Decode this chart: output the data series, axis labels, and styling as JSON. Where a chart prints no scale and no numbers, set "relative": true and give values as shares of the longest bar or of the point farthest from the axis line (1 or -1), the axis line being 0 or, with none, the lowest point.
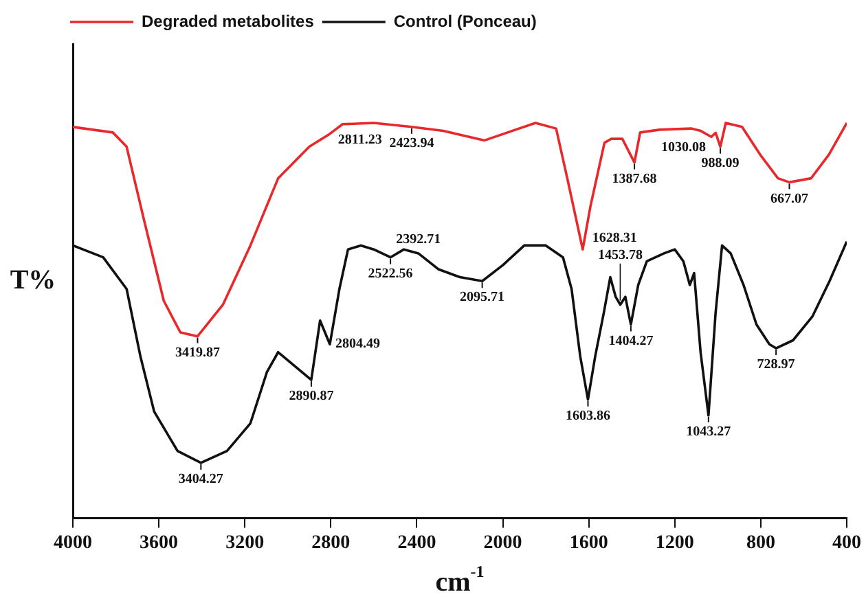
{
  "chart_data": {
    "type": "line",
    "relative": true,
    "xlabel": "cm$^{-1}$",
    "ylabel": "T%",
    "xlim": [
      4000,
      400
    ],
    "xticks": [
      4000,
      3600,
      3200,
      2800,
      2400,
      2000,
      1600,
      1200,
      800,
      400
    ],
    "grid": false,
    "legend": "top left",
    "marker": "none",
    "line_style": "solid",
    "series": [
      {
        "name": "Degraded metabolites",
        "color": "#e8282b",
        "x": [
          4000,
          3814,
          3750,
          3667,
          3577,
          3500,
          3419.87,
          3302,
          3174,
          3045,
          2900,
          2811.23,
          2745,
          2600,
          2423.94,
          2277,
          2085,
          1848,
          1752,
          1700,
          1628.31,
          1592,
          1527,
          1495,
          1444,
          1387.68,
          1361,
          1271,
          1124,
          1079,
          1030.08,
          1010,
          988.09,
          963,
          887,
          803,
          720,
          667.07,
          566,
          483,
          400
        ],
        "values": [
          0.99,
          0.976,
          0.94,
          0.75,
          0.55,
          0.47,
          0.46,
          0.54,
          0.69,
          0.86,
          0.94,
          0.97,
          0.997,
          1.0,
          0.99,
          0.98,
          0.956,
          1.0,
          0.986,
          0.86,
          0.68,
          0.79,
          0.95,
          0.96,
          0.96,
          0.9,
          0.976,
          0.983,
          0.986,
          0.98,
          0.965,
          0.975,
          0.94,
          1.0,
          0.99,
          0.92,
          0.86,
          0.85,
          0.86,
          0.92,
          1.0
        ]
      },
      {
        "name": "Control (Ponceau)",
        "color": "#111111",
        "x": [
          4000,
          3859,
          3750,
          3686,
          3622,
          3513,
          3404.27,
          3283,
          3174,
          3097,
          3045,
          2890.87,
          2850,
          2804.49,
          2760,
          2720,
          2660,
          2600,
          2522.56,
          2460,
          2392.71,
          2300,
          2200,
          2095.71,
          2000,
          1900,
          1800,
          1720,
          1680,
          1640,
          1603.86,
          1570,
          1530,
          1500,
          1475,
          1453.78,
          1430,
          1404.27,
          1370,
          1330,
          1250,
          1200,
          1160,
          1130,
          1110,
          1080,
          1043.27,
          1010,
          980,
          940,
          880,
          820,
          760,
          728.97,
          650,
          560,
          480,
          400
        ],
        "values": [
          0.69,
          0.66,
          0.58,
          0.41,
          0.27,
          0.17,
          0.14,
          0.17,
          0.24,
          0.37,
          0.42,
          0.35,
          0.5,
          0.44,
          0.58,
          0.68,
          0.69,
          0.68,
          0.66,
          0.68,
          0.67,
          0.63,
          0.61,
          0.6,
          0.64,
          0.69,
          0.69,
          0.66,
          0.58,
          0.41,
          0.3,
          0.41,
          0.52,
          0.61,
          0.56,
          0.54,
          0.56,
          0.49,
          0.59,
          0.65,
          0.67,
          0.68,
          0.65,
          0.59,
          0.62,
          0.42,
          0.26,
          0.52,
          0.69,
          0.67,
          0.59,
          0.49,
          0.44,
          0.43,
          0.45,
          0.51,
          0.6,
          0.7
        ]
      }
    ],
    "annotations": [
      {
        "text": "3419.87",
        "x": 3419.87,
        "y": 0.46
      },
      {
        "text": "2811.23",
        "x": 2811.23,
        "y": 0.97
      },
      {
        "text": "2423.94",
        "x": 2423.94,
        "y": 0.99
      },
      {
        "text": "1628.31",
        "x": 1628.31,
        "y": 0.68
      },
      {
        "text": "1387.68",
        "x": 1387.68,
        "y": 0.9
      },
      {
        "text": "1030.08",
        "x": 1030.08,
        "y": 0.965
      },
      {
        "text": "988.09",
        "x": 988.09,
        "y": 0.94
      },
      {
        "text": "667.07",
        "x": 667.07,
        "y": 0.85
      },
      {
        "text": "3404.27",
        "x": 3404.27,
        "y": 0.14
      },
      {
        "text": "2890.87",
        "x": 2890.87,
        "y": 0.35
      },
      {
        "text": "2804.49",
        "x": 2804.49,
        "y": 0.44
      },
      {
        "text": "2522.56",
        "x": 2522.56,
        "y": 0.66
      },
      {
        "text": "2392.71",
        "x": 2392.71,
        "y": 0.67
      },
      {
        "text": "2095.71",
        "x": 2095.71,
        "y": 0.6
      },
      {
        "text": "1603.86",
        "x": 1603.86,
        "y": 0.3
      },
      {
        "text": "1453.78",
        "x": 1453.78,
        "y": 0.54
      },
      {
        "text": "1404.27",
        "x": 1404.27,
        "y": 0.49
      },
      {
        "text": "1043.27",
        "x": 1043.27,
        "y": 0.26
      },
      {
        "text": "728.97",
        "x": 728.97,
        "y": 0.43
      }
    ]
  }
}
